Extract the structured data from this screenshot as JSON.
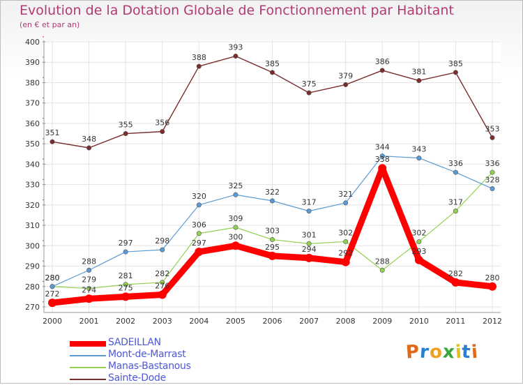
{
  "chart_data": {
    "type": "line",
    "title": "Evolution de la Dotation Globale de Fonctionnement par Habitant",
    "subtitle": "(en € et par an)",
    "xlabel": "",
    "ylabel": "",
    "x": [
      "2000",
      "2001",
      "2002",
      "2003",
      "2004",
      "2005",
      "2006",
      "2007",
      "2008",
      "2009",
      "2010",
      "2011",
      "2012"
    ],
    "ylim": [
      270,
      400
    ],
    "yticks": [
      270,
      280,
      290,
      300,
      310,
      320,
      330,
      340,
      350,
      360,
      370,
      380,
      390,
      400
    ],
    "grid": true,
    "legend_position": "bottom-left",
    "series": [
      {
        "name": "SADEILLAN",
        "color": "#ff0000",
        "values": [
          272,
          274,
          275,
          276,
          297,
          300,
          295,
          294,
          292,
          338,
          293,
          282,
          280
        ]
      },
      {
        "name": "Mont-de-Marrast",
        "color": "#5b9bd5",
        "values": [
          280,
          288,
          297,
          298,
          320,
          325,
          322,
          317,
          321,
          344,
          343,
          336,
          328
        ]
      },
      {
        "name": "Manas-Bastanous",
        "color": "#92d050",
        "values": [
          280,
          279,
          281,
          282,
          306,
          309,
          303,
          301,
          302,
          288,
          302,
          317,
          336
        ]
      },
      {
        "name": "Sainte-Dode",
        "color": "#7b2c2c",
        "values": [
          351,
          348,
          355,
          356,
          388,
          393,
          385,
          375,
          379,
          386,
          381,
          385,
          353
        ]
      }
    ]
  },
  "logo": {
    "letters": [
      "P",
      "r",
      "o",
      "x",
      "i",
      "t",
      "i"
    ],
    "colors": [
      "#e06a1b",
      "#2b7fd1",
      "#f0a020",
      "#3aa53a",
      "#e0c020",
      "#2b7fd1",
      "#e06a1b"
    ]
  }
}
